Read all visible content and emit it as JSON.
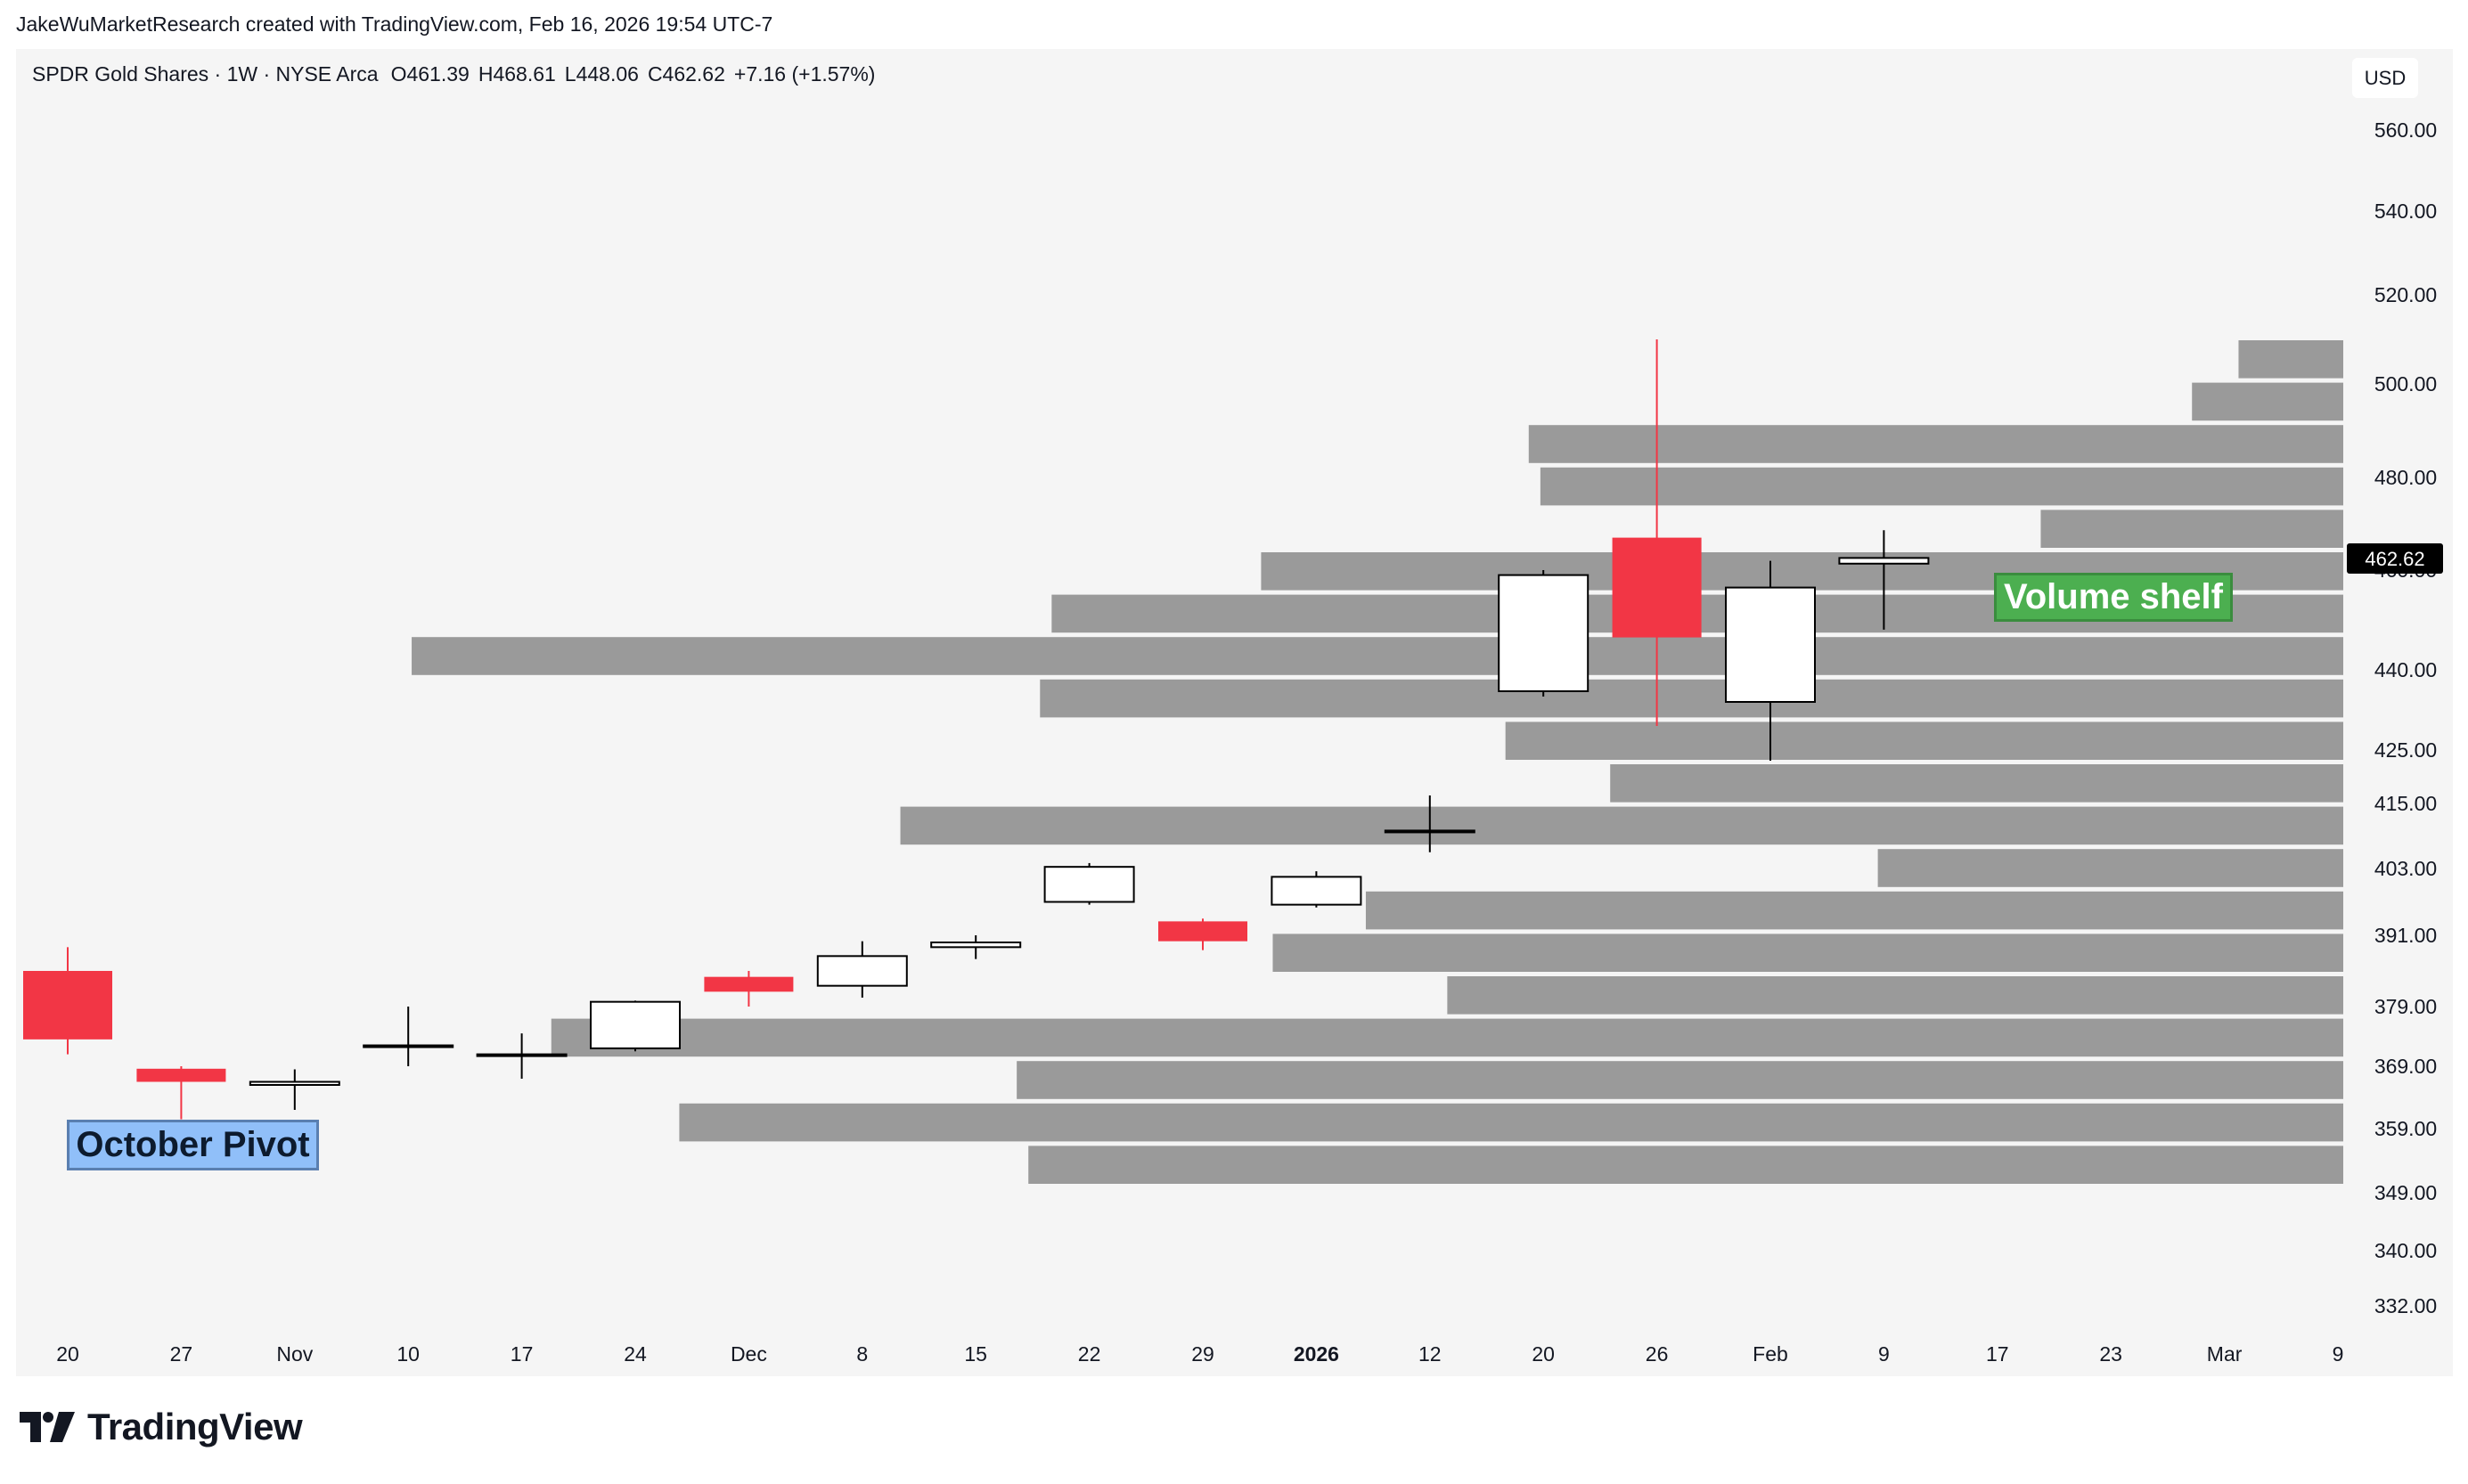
{
  "credit": "JakeWuMarketResearch created with TradingView.com, Feb 16, 2026 19:54 UTC-7",
  "legend": {
    "title": "SPDR Gold Shares · 1W · NYSE Arca",
    "open": "O461.39",
    "high": "H468.61",
    "low": "L448.06",
    "close": "C462.62",
    "change": "+7.16 (+1.57%)"
  },
  "currency": "USD",
  "brand": "TradingView",
  "colors": {
    "down": "#f23645",
    "up_fill": "#ffffff",
    "wick": "#000000",
    "volume": "#9a9a9a",
    "price_tag": "#000000"
  },
  "annotations": {
    "october_pivot": "October Pivot",
    "volume_shelf": "Volume shelf"
  },
  "chart_data": {
    "type": "candlestick",
    "interval": "1W",
    "price_label": "462.62",
    "yaxis_ticks": [
      "560.00",
      "540.00",
      "520.00",
      "500.00",
      "480.00",
      "460.00",
      "440.00",
      "425.00",
      "415.00",
      "403.00",
      "391.00",
      "379.00",
      "369.00",
      "359.00",
      "349.00",
      "340.00",
      "332.00"
    ],
    "xaxis_ticks": [
      "20",
      "27",
      "Nov",
      "10",
      "17",
      "24",
      "Dec",
      "8",
      "15",
      "22",
      "29",
      "2026",
      "12",
      "20",
      "26",
      "Feb",
      "9",
      "17",
      "23",
      "Mar",
      "9"
    ],
    "candles": [
      {
        "x": "Oct 20",
        "open": 385.0,
        "high": 389.0,
        "low": 371.0,
        "close": 373.5
      },
      {
        "x": "Oct 27",
        "open": 368.6,
        "high": 369.0,
        "low": 360.5,
        "close": 366.5
      },
      {
        "x": "Nov 3",
        "open": 366.0,
        "high": 368.5,
        "low": 362.0,
        "close": 366.5
      },
      {
        "x": "Nov 10",
        "open": 372.5,
        "high": 379.0,
        "low": 369.0,
        "close": 372.5
      },
      {
        "x": "Nov 17",
        "open": 371.0,
        "high": 374.5,
        "low": 367.0,
        "close": 371.0
      },
      {
        "x": "Nov 24",
        "open": 372.0,
        "high": 380.0,
        "low": 371.5,
        "close": 379.8
      },
      {
        "x": "Dec 1",
        "open": 384.0,
        "high": 385.0,
        "low": 379.0,
        "close": 381.5
      },
      {
        "x": "Dec 8",
        "open": 382.5,
        "high": 390.0,
        "low": 380.5,
        "close": 387.5
      },
      {
        "x": "Dec 15",
        "open": 389.0,
        "high": 391.0,
        "low": 387.0,
        "close": 389.8
      },
      {
        "x": "Dec 22",
        "open": 397.0,
        "high": 404.0,
        "low": 396.5,
        "close": 403.3
      },
      {
        "x": "Dec 29",
        "open": 393.5,
        "high": 394.0,
        "low": 388.5,
        "close": 390.0
      },
      {
        "x": "Jan 5",
        "open": 396.5,
        "high": 402.5,
        "low": 396.0,
        "close": 401.5
      },
      {
        "x": "Jan 12",
        "open": 410.0,
        "high": 416.5,
        "low": 406.0,
        "close": 410.0
      },
      {
        "x": "Jan 20",
        "open": 436.0,
        "high": 460.0,
        "low": 435.0,
        "close": 459.0
      },
      {
        "x": "Jan 26",
        "open": 467.0,
        "high": 510.0,
        "low": 429.5,
        "close": 446.5
      },
      {
        "x": "Feb 2",
        "open": 434.0,
        "high": 462.0,
        "low": 423.0,
        "close": 456.5
      },
      {
        "x": "Feb 9",
        "open": 461.39,
        "high": 468.61,
        "low": 448.06,
        "close": 462.62
      }
    ],
    "volume_profile": [
      {
        "row": 1,
        "size": 0.045
      },
      {
        "row": 2,
        "size": 0.065
      },
      {
        "row": 3,
        "size": 0.35
      },
      {
        "row": 4,
        "size": 0.345
      },
      {
        "row": 5,
        "size": 0.13
      },
      {
        "row": 6,
        "size": 0.465
      },
      {
        "row": 7,
        "size": 0.555
      },
      {
        "row": 8,
        "size": 0.83
      },
      {
        "row": 9,
        "size": 0.56
      },
      {
        "row": 10,
        "size": 0.36
      },
      {
        "row": 11,
        "size": 0.315
      },
      {
        "row": 12,
        "size": 0.62
      },
      {
        "row": 13,
        "size": 0.2
      },
      {
        "row": 14,
        "size": 0.42
      },
      {
        "row": 15,
        "size": 0.46
      },
      {
        "row": 16,
        "size": 0.385
      },
      {
        "row": 17,
        "size": 0.77
      },
      {
        "row": 18,
        "size": 0.57
      },
      {
        "row": 19,
        "size": 0.715
      },
      {
        "row": 20,
        "size": 0.565
      }
    ]
  }
}
